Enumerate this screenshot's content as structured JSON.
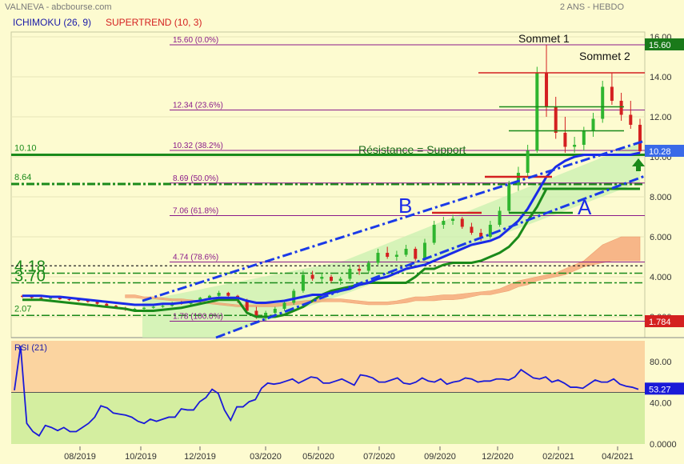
{
  "header": {
    "symbol": "VALNEVA - abcbourse.com",
    "period": "2 ANS - HEBDO",
    "ichimoku_label": "ICHIMOKU (26, 9)",
    "supertrend_label": "SUPERTREND (10, 3)"
  },
  "colors": {
    "background": "#fdfbd0",
    "ichimoku": "#1a1aa8",
    "supertrend": "#d42020",
    "candle_up": "#2fb52f",
    "candle_down": "#d42020",
    "channel": "#1a3ae8",
    "support": "#1a8a1a",
    "fib": "#8a1a8a",
    "cloud": "#f5a070",
    "rsi_line": "#1a1ad8",
    "rsi_high_zone": "#fbd4a0",
    "rsi_low_zone": "#d4eea0"
  },
  "chart_data": [
    {
      "type": "candlestick",
      "ylim": [
        1.0,
        16.0
      ],
      "y_ticks": [
        "16.00",
        "14.00",
        "12.00",
        "10.00",
        "8.000",
        "6.000",
        "4.000",
        "2.000"
      ],
      "x_ticks": [
        "08/2019",
        "10/2019",
        "12/2019",
        "03/2020",
        "05/2020",
        "07/2020",
        "09/2020",
        "12/2020",
        "02/2021",
        "04/2021"
      ],
      "last_price": "10.28",
      "high_badge": "15.60",
      "low_badge": "1.784",
      "fibonacci": [
        {
          "label": "15.60 (0.0%)",
          "value": 15.6
        },
        {
          "label": "12.34 (23.6%)",
          "value": 12.34
        },
        {
          "label": "10.32 (38.2%)",
          "value": 10.32
        },
        {
          "label": "8.69 (50.0%)",
          "value": 8.69
        },
        {
          "label": "7.06 (61.8%)",
          "value": 7.06
        },
        {
          "label": "4.74 (78.6%)",
          "value": 4.74
        },
        {
          "label": "1.78 (100.0%)",
          "value": 1.78
        }
      ],
      "levels": [
        {
          "label": "10.10",
          "value": 10.1
        },
        {
          "label": "8.64",
          "value": 8.64
        },
        {
          "label": "4.18",
          "value": 4.18
        },
        {
          "label": "3.70",
          "value": 3.7
        },
        {
          "label": "2.07",
          "value": 2.07
        }
      ],
      "annotations": {
        "peak1": "Sommet 1",
        "peak2": "Sommet 2",
        "resistance": "Résistance = Support",
        "line_b": "B",
        "line_a": "A"
      },
      "candles": [
        [
          3.05,
          3.1,
          2.95,
          3.0
        ],
        [
          3.0,
          3.05,
          2.9,
          2.95
        ],
        [
          2.95,
          3.0,
          2.85,
          2.9
        ],
        [
          2.9,
          3.0,
          2.85,
          2.95
        ],
        [
          2.95,
          3.0,
          2.85,
          2.88
        ],
        [
          2.88,
          2.95,
          2.8,
          2.85
        ],
        [
          2.85,
          2.9,
          2.75,
          2.8
        ],
        [
          2.8,
          2.85,
          2.7,
          2.75
        ],
        [
          2.75,
          2.8,
          2.6,
          2.65
        ],
        [
          2.65,
          2.7,
          2.5,
          2.55
        ],
        [
          2.55,
          2.6,
          2.4,
          2.45
        ],
        [
          2.45,
          2.5,
          2.3,
          2.35
        ],
        [
          2.35,
          2.45,
          2.3,
          2.4
        ],
        [
          2.4,
          2.5,
          2.35,
          2.45
        ],
        [
          2.45,
          2.55,
          2.4,
          2.5
        ],
        [
          2.5,
          2.6,
          2.45,
          2.55
        ],
        [
          2.55,
          2.75,
          2.5,
          2.7
        ],
        [
          2.7,
          2.8,
          2.6,
          2.65
        ],
        [
          2.65,
          2.8,
          2.6,
          2.75
        ],
        [
          2.75,
          3.0,
          2.7,
          2.95
        ],
        [
          2.95,
          3.1,
          2.85,
          3.05
        ],
        [
          3.05,
          3.3,
          3.0,
          3.2
        ],
        [
          3.2,
          3.25,
          3.0,
          3.05
        ],
        [
          3.05,
          3.1,
          2.7,
          2.8
        ],
        [
          2.8,
          2.9,
          2.2,
          2.3
        ],
        [
          2.3,
          2.5,
          1.9,
          2.0
        ],
        [
          2.0,
          2.3,
          1.8,
          2.2
        ],
        [
          2.2,
          2.5,
          2.1,
          2.4
        ],
        [
          2.4,
          2.8,
          2.3,
          2.7
        ],
        [
          2.7,
          3.4,
          2.6,
          3.3
        ],
        [
          3.3,
          4.3,
          3.2,
          4.1
        ],
        [
          4.1,
          4.3,
          3.8,
          3.9
        ],
        [
          3.9,
          4.2,
          3.7,
          4.0
        ],
        [
          4.0,
          4.1,
          3.7,
          3.8
        ],
        [
          3.8,
          4.0,
          3.6,
          3.9
        ],
        [
          3.9,
          4.6,
          3.8,
          4.4
        ],
        [
          4.4,
          4.6,
          4.1,
          4.3
        ],
        [
          4.3,
          4.8,
          4.2,
          4.7
        ],
        [
          4.7,
          5.4,
          4.6,
          5.2
        ],
        [
          5.2,
          5.5,
          4.9,
          5.0
        ],
        [
          5.0,
          5.3,
          4.8,
          5.1
        ],
        [
          5.1,
          5.6,
          5.0,
          5.4
        ],
        [
          5.4,
          5.5,
          4.8,
          4.9
        ],
        [
          4.9,
          5.9,
          4.8,
          5.7
        ],
        [
          5.7,
          6.8,
          5.6,
          6.6
        ],
        [
          6.6,
          7.0,
          6.4,
          6.8
        ],
        [
          6.8,
          7.1,
          6.6,
          6.9
        ],
        [
          6.9,
          7.0,
          6.4,
          6.5
        ],
        [
          6.5,
          6.7,
          6.1,
          6.2
        ],
        [
          6.2,
          6.4,
          5.8,
          6.0
        ],
        [
          6.0,
          6.8,
          5.9,
          6.6
        ],
        [
          6.6,
          7.5,
          6.5,
          7.3
        ],
        [
          7.3,
          8.8,
          7.2,
          8.6
        ],
        [
          8.6,
          9.5,
          8.3,
          9.2
        ],
        [
          9.2,
          10.6,
          9.0,
          10.3
        ],
        [
          10.3,
          14.5,
          10.2,
          14.2
        ],
        [
          14.2,
          15.6,
          12.0,
          12.5
        ],
        [
          12.5,
          13.0,
          10.9,
          11.2
        ],
        [
          11.2,
          12.0,
          10.2,
          10.5
        ],
        [
          10.5,
          11.0,
          10.2,
          10.6
        ],
        [
          10.6,
          11.5,
          10.3,
          11.3
        ],
        [
          11.3,
          12.2,
          11.0,
          11.9
        ],
        [
          11.9,
          13.8,
          11.7,
          13.5
        ],
        [
          13.5,
          14.2,
          12.6,
          12.8
        ],
        [
          12.8,
          13.2,
          11.8,
          12.1
        ],
        [
          12.1,
          12.8,
          11.4,
          11.6
        ],
        [
          11.6,
          11.9,
          10.2,
          10.28
        ]
      ],
      "ichimoku_kijun": [
        3.05,
        3.05,
        3.05,
        3.0,
        3.0,
        2.95,
        2.9,
        2.85,
        2.8,
        2.75,
        2.7,
        2.65,
        2.6,
        2.6,
        2.6,
        2.65,
        2.65,
        2.7,
        2.75,
        2.8,
        2.9,
        2.95,
        2.95,
        2.95,
        2.8,
        2.7,
        2.7,
        2.75,
        2.8,
        2.9,
        3.0,
        3.1,
        3.1,
        3.2,
        3.3,
        3.4,
        3.6,
        3.7,
        3.9,
        4.0,
        4.2,
        4.4,
        4.5,
        4.6,
        4.8,
        5.0,
        5.2,
        5.4,
        5.6,
        5.7,
        5.8,
        6.0,
        6.4,
        6.8,
        7.4,
        8.2,
        9.0,
        9.5,
        9.8,
        10.0,
        10.1,
        10.1,
        10.1,
        10.1,
        10.1,
        10.1,
        10.2
      ],
      "supertrend": [
        2.85,
        2.85,
        2.85,
        2.8,
        2.75,
        2.7,
        2.65,
        2.6,
        2.55,
        2.5,
        2.45,
        2.4,
        2.3,
        2.3,
        2.3,
        2.35,
        2.4,
        2.45,
        2.55,
        2.65,
        2.75,
        2.85,
        2.85,
        2.85,
        2.2,
        2.0,
        2.0,
        2.0,
        2.1,
        2.3,
        2.5,
        2.8,
        3.1,
        3.3,
        3.4,
        3.5,
        3.6,
        3.7,
        3.7,
        3.7,
        3.7,
        3.7,
        4.0,
        4.4,
        4.4,
        4.6,
        4.7,
        4.7,
        4.7,
        4.8,
        5.0,
        5.2,
        5.5,
        6.0,
        6.8,
        7.5,
        8.4,
        8.4,
        8.4,
        8.4,
        8.4,
        8.4,
        8.4,
        8.4,
        8.4,
        8.4,
        8.4
      ],
      "cloud_upper": [
        3.1,
        3.1,
        3.0,
        3.0,
        2.95,
        2.9,
        2.9,
        2.85,
        2.8,
        2.75,
        2.7,
        2.65,
        2.6,
        2.6,
        2.6,
        2.65,
        2.65,
        2.7,
        2.75,
        2.8,
        2.85,
        2.9,
        2.9,
        2.9,
        2.85,
        2.8,
        2.75,
        2.75,
        2.75,
        2.8,
        2.9,
        3.0,
        3.0,
        3.05,
        3.1,
        3.1,
        3.15,
        3.2,
        3.25,
        3.3,
        3.4,
        3.6,
        3.8,
        3.9,
        4.0,
        4.1,
        4.2,
        4.4,
        4.6,
        4.8,
        5.2,
        5.6,
        5.8,
        6.0,
        6.0,
        6.0
      ],
      "cloud_lower": [
        2.95,
        2.95,
        2.9,
        2.9,
        2.85,
        2.8,
        2.8,
        2.75,
        2.7,
        2.65,
        2.6,
        2.55,
        2.5,
        2.5,
        2.5,
        2.5,
        2.5,
        2.55,
        2.6,
        2.65,
        2.7,
        2.75,
        2.75,
        2.75,
        2.7,
        2.65,
        2.6,
        2.6,
        2.6,
        2.65,
        2.7,
        2.8,
        2.8,
        2.8,
        2.85,
        2.85,
        2.9,
        3.0,
        3.1,
        3.1,
        3.2,
        3.3,
        3.5,
        3.6,
        3.8,
        3.9,
        4.0,
        4.1,
        4.3,
        4.5,
        4.6,
        4.7,
        4.8,
        4.8,
        4.8,
        4.8
      ]
    },
    {
      "type": "line",
      "title": "RSI (21)",
      "ylim": [
        0,
        100
      ],
      "y_ticks": [
        "80.00",
        "40.00",
        "0.0000"
      ],
      "last_value": "53.27",
      "values": [
        52,
        95,
        20,
        12,
        8,
        18,
        16,
        13,
        16,
        12,
        12,
        16,
        20,
        26,
        37,
        35,
        30,
        29,
        28,
        26,
        22,
        20,
        24,
        22,
        24,
        26,
        26,
        34,
        33,
        33,
        41,
        45,
        53,
        49,
        33,
        23,
        36,
        36,
        41,
        43,
        54,
        59,
        58,
        59,
        61,
        63,
        59,
        62,
        65,
        64,
        59,
        59,
        61,
        63,
        60,
        57,
        67,
        66,
        64,
        60,
        60,
        62,
        64,
        59,
        58,
        60,
        64,
        61,
        60,
        63,
        58,
        60,
        61,
        64,
        63,
        60,
        61,
        61,
        63,
        63,
        62,
        65,
        72,
        68,
        64,
        63,
        65,
        60,
        62,
        59,
        55,
        55,
        54,
        58,
        62,
        60,
        60,
        63,
        58,
        56,
        55,
        53
      ]
    }
  ]
}
